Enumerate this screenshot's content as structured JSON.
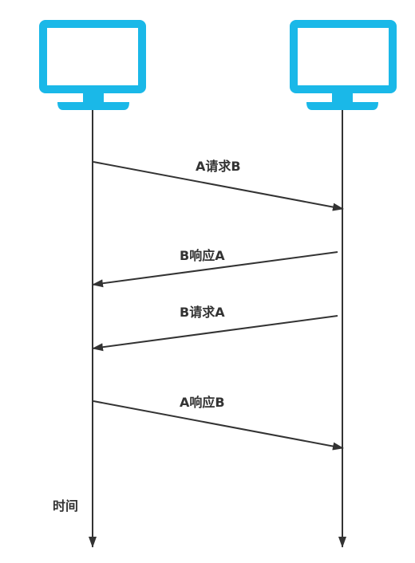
{
  "colors": {
    "monitor": "#1ab8e8",
    "line": "#333333",
    "background": "#ffffff"
  },
  "nodes": [
    {
      "name": "computer-a",
      "icon": "monitor-icon"
    },
    {
      "name": "computer-b",
      "icon": "monitor-icon"
    }
  ],
  "messages": [
    {
      "label": "A请求B",
      "from": "A",
      "to": "B"
    },
    {
      "label": "B响应A",
      "from": "B",
      "to": "A"
    },
    {
      "label": "B请求A",
      "from": "B",
      "to": "A"
    },
    {
      "label": "A响应B",
      "from": "A",
      "to": "B"
    }
  ],
  "time_label": "时间"
}
